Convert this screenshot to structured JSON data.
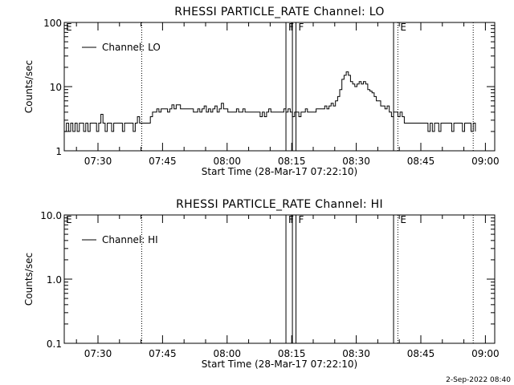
{
  "footer_date": "2-Sep-2022 08:40",
  "x_ticks": [
    "07:30",
    "07:45",
    "08:00",
    "08:15",
    "08:30",
    "08:45",
    "09:00"
  ],
  "chart_data": [
    {
      "type": "line",
      "title": "RHESSI PARTICLE_RATE Channel: LO",
      "xlabel": "Start Time (28-Mar-17 07:22:10)",
      "ylabel": "Counts/sec",
      "yscale": "log",
      "ylim": [
        1,
        100
      ],
      "y_tick_labels": [
        "1",
        "10",
        "100"
      ],
      "xlim": [
        "07:22:10",
        "09:02:10"
      ],
      "legend": "top-left",
      "series": [
        {
          "name": "Channel: LO",
          "points": [
            [
              "07:22:10",
              2
            ],
            [
              "07:22:40",
              2.7
            ],
            [
              "07:23:10",
              2
            ],
            [
              "07:23:40",
              2.7
            ],
            [
              "07:24:10",
              2
            ],
            [
              "07:24:40",
              2.7
            ],
            [
              "07:25:10",
              2
            ],
            [
              "07:25:40",
              2.7
            ],
            [
              "07:26:10",
              2.7
            ],
            [
              "07:26:40",
              2
            ],
            [
              "07:27:10",
              2.7
            ],
            [
              "07:27:40",
              2
            ],
            [
              "07:28:10",
              2.7
            ],
            [
              "07:28:40",
              2.7
            ],
            [
              "07:29:10",
              2.7
            ],
            [
              "07:29:40",
              2
            ],
            [
              "07:30:10",
              2.7
            ],
            [
              "07:30:40",
              3.7
            ],
            [
              "07:31:10",
              2.7
            ],
            [
              "07:31:40",
              2
            ],
            [
              "07:32:10",
              2.7
            ],
            [
              "07:32:40",
              2.7
            ],
            [
              "07:33:10",
              2
            ],
            [
              "07:33:40",
              2.7
            ],
            [
              "07:34:10",
              2.7
            ],
            [
              "07:34:40",
              2.7
            ],
            [
              "07:35:10",
              2.7
            ],
            [
              "07:35:40",
              2
            ],
            [
              "07:36:10",
              2.7
            ],
            [
              "07:36:40",
              2.7
            ],
            [
              "07:37:10",
              2.7
            ],
            [
              "07:37:40",
              2.7
            ],
            [
              "07:38:10",
              2
            ],
            [
              "07:38:40",
              2.7
            ],
            [
              "07:39:10",
              3.4
            ],
            [
              "07:39:40",
              2.7
            ],
            [
              "07:40:10",
              2.7
            ],
            [
              "07:40:40",
              2.7
            ],
            [
              "07:41:10",
              2.7
            ],
            [
              "07:41:40",
              2.7
            ],
            [
              "07:42:10",
              3.4
            ],
            [
              "07:42:40",
              4
            ],
            [
              "07:43:10",
              4
            ],
            [
              "07:43:40",
              4.5
            ],
            [
              "07:44:10",
              4
            ],
            [
              "07:44:40",
              4.5
            ],
            [
              "07:45:10",
              4.5
            ],
            [
              "07:45:40",
              4.5
            ],
            [
              "07:46:10",
              4
            ],
            [
              "07:46:40",
              4.5
            ],
            [
              "07:47:10",
              5.2
            ],
            [
              "07:47:40",
              4.5
            ],
            [
              "07:48:10",
              5.2
            ],
            [
              "07:48:40",
              5.2
            ],
            [
              "07:49:10",
              4.5
            ],
            [
              "07:49:40",
              4.5
            ],
            [
              "07:50:10",
              4.5
            ],
            [
              "07:50:40",
              4.5
            ],
            [
              "07:51:10",
              4.5
            ],
            [
              "07:51:40",
              4.5
            ],
            [
              "07:52:10",
              4
            ],
            [
              "07:52:40",
              4
            ],
            [
              "07:53:10",
              4.5
            ],
            [
              "07:53:40",
              4
            ],
            [
              "07:54:10",
              4.5
            ],
            [
              "07:54:40",
              5
            ],
            [
              "07:55:10",
              4
            ],
            [
              "07:55:40",
              4.5
            ],
            [
              "07:56:10",
              4
            ],
            [
              "07:56:40",
              4.5
            ],
            [
              "07:57:10",
              5
            ],
            [
              "07:57:40",
              4
            ],
            [
              "07:58:10",
              4.5
            ],
            [
              "07:58:40",
              5.5
            ],
            [
              "07:59:10",
              4.5
            ],
            [
              "07:59:40",
              4.5
            ],
            [
              "08:00:10",
              4
            ],
            [
              "08:00:40",
              4
            ],
            [
              "08:01:10",
              4
            ],
            [
              "08:01:40",
              4
            ],
            [
              "08:02:10",
              4.5
            ],
            [
              "08:02:40",
              4
            ],
            [
              "08:03:10",
              4
            ],
            [
              "08:03:40",
              4.5
            ],
            [
              "08:04:10",
              4
            ],
            [
              "08:04:40",
              4
            ],
            [
              "08:05:10",
              4
            ],
            [
              "08:05:40",
              4
            ],
            [
              "08:06:10",
              4
            ],
            [
              "08:06:40",
              4
            ],
            [
              "08:07:10",
              4
            ],
            [
              "08:07:40",
              3.4
            ],
            [
              "08:08:10",
              4
            ],
            [
              "08:08:40",
              3.4
            ],
            [
              "08:09:10",
              4
            ],
            [
              "08:09:40",
              4.5
            ],
            [
              "08:10:10",
              4
            ],
            [
              "08:10:40",
              4
            ],
            [
              "08:11:10",
              4
            ],
            [
              "08:11:40",
              4
            ],
            [
              "08:12:10",
              4
            ],
            [
              "08:12:40",
              4
            ],
            [
              "08:13:10",
              4.5
            ],
            [
              "08:13:40",
              4
            ],
            [
              "08:14:10",
              4.5
            ],
            [
              "08:14:40",
              4
            ],
            [
              "08:15:10",
              3.4
            ],
            [
              "08:15:40",
              4
            ],
            [
              "08:16:10",
              4
            ],
            [
              "08:16:40",
              3.4
            ],
            [
              "08:17:10",
              4
            ],
            [
              "08:17:40",
              4
            ],
            [
              "08:18:10",
              4.5
            ],
            [
              "08:18:40",
              4
            ],
            [
              "08:19:10",
              4
            ],
            [
              "08:19:40",
              4
            ],
            [
              "08:20:10",
              4
            ],
            [
              "08:20:40",
              4.5
            ],
            [
              "08:21:10",
              4.5
            ],
            [
              "08:21:40",
              4.5
            ],
            [
              "08:22:10",
              4.5
            ],
            [
              "08:22:40",
              5
            ],
            [
              "08:23:10",
              4.5
            ],
            [
              "08:23:40",
              5
            ],
            [
              "08:24:10",
              5.5
            ],
            [
              "08:24:40",
              5
            ],
            [
              "08:25:10",
              6
            ],
            [
              "08:25:40",
              7
            ],
            [
              "08:26:10",
              9
            ],
            [
              "08:26:40",
              13
            ],
            [
              "08:27:10",
              15
            ],
            [
              "08:27:40",
              17
            ],
            [
              "08:28:10",
              15
            ],
            [
              "08:28:40",
              12
            ],
            [
              "08:29:10",
              11
            ],
            [
              "08:29:40",
              10
            ],
            [
              "08:30:10",
              11
            ],
            [
              "08:30:40",
              12
            ],
            [
              "08:31:10",
              11
            ],
            [
              "08:31:40",
              12
            ],
            [
              "08:32:10",
              11
            ],
            [
              "08:32:40",
              9
            ],
            [
              "08:33:10",
              8.5
            ],
            [
              "08:33:40",
              8
            ],
            [
              "08:34:10",
              7
            ],
            [
              "08:34:40",
              6
            ],
            [
              "08:35:10",
              6
            ],
            [
              "08:35:40",
              5
            ],
            [
              "08:36:10",
              5
            ],
            [
              "08:36:40",
              4.5
            ],
            [
              "08:37:10",
              5
            ],
            [
              "08:37:40",
              4
            ],
            [
              "08:38:10",
              3.4
            ],
            [
              "08:38:40",
              4
            ],
            [
              "08:39:10",
              4
            ],
            [
              "08:39:40",
              3.4
            ],
            [
              "08:40:10",
              4
            ],
            [
              "08:40:40",
              3.4
            ],
            [
              "08:41:10",
              2.7
            ],
            [
              "08:41:40",
              2.7
            ],
            [
              "08:42:10",
              2.7
            ],
            [
              "08:42:40",
              2.7
            ],
            [
              "08:43:10",
              2.7
            ],
            [
              "08:43:40",
              2.7
            ],
            [
              "08:44:10",
              2.7
            ],
            [
              "08:44:40",
              2.7
            ],
            [
              "08:45:10",
              2.7
            ],
            [
              "08:45:40",
              2.7
            ],
            [
              "08:46:10",
              2.7
            ],
            [
              "08:46:40",
              2
            ],
            [
              "08:47:10",
              2.7
            ],
            [
              "08:47:40",
              2
            ],
            [
              "08:48:10",
              2.7
            ],
            [
              "08:48:40",
              2.7
            ],
            [
              "08:49:10",
              2
            ],
            [
              "08:49:40",
              2.7
            ],
            [
              "08:50:10",
              2.7
            ],
            [
              "08:50:40",
              2.7
            ],
            [
              "08:51:10",
              2.7
            ],
            [
              "08:51:40",
              2.7
            ],
            [
              "08:52:10",
              2
            ],
            [
              "08:52:40",
              2.7
            ],
            [
              "08:53:10",
              2.7
            ],
            [
              "08:53:40",
              2.7
            ],
            [
              "08:54:10",
              2.7
            ],
            [
              "08:54:40",
              2
            ],
            [
              "08:55:10",
              2.7
            ],
            [
              "08:55:40",
              2.7
            ],
            [
              "08:56:10",
              2.7
            ],
            [
              "08:56:40",
              2
            ],
            [
              "08:57:10",
              2.7
            ],
            [
              "08:57:40",
              2
            ]
          ]
        }
      ],
      "markers": [
        {
          "time": "07:40:10",
          "label": "",
          "style": "dotted"
        },
        {
          "time": "08:13:40",
          "label": "F",
          "style": "solid"
        },
        {
          "time": "08:15:10",
          "label": "",
          "style": "solid"
        },
        {
          "time": "08:16:00",
          "label": "F",
          "style": "solid"
        },
        {
          "time": "08:38:40",
          "label": "",
          "style": "solid"
        },
        {
          "time": "08:39:40",
          "label": "E",
          "style": "dotted"
        },
        {
          "time": "08:57:10",
          "label": "",
          "style": "dotted"
        }
      ],
      "corner_label": "E"
    },
    {
      "type": "line",
      "title": "RHESSI PARTICLE_RATE Channel: HI",
      "xlabel": "Start Time (28-Mar-17 07:22:10)",
      "ylabel": "Counts/sec",
      "yscale": "log",
      "ylim": [
        0.1,
        10
      ],
      "y_tick_labels": [
        "0.1",
        "1.0",
        "10.0"
      ],
      "xlim": [
        "07:22:10",
        "09:02:10"
      ],
      "legend": "top-left",
      "series": [
        {
          "name": "Channel: HI",
          "points": []
        }
      ],
      "markers": [
        {
          "time": "07:40:10",
          "label": "",
          "style": "dotted"
        },
        {
          "time": "08:13:40",
          "label": "F",
          "style": "solid"
        },
        {
          "time": "08:15:10",
          "label": "",
          "style": "solid"
        },
        {
          "time": "08:16:00",
          "label": "F",
          "style": "solid"
        },
        {
          "time": "08:38:40",
          "label": "",
          "style": "solid"
        },
        {
          "time": "08:39:40",
          "label": "E",
          "style": "dotted"
        },
        {
          "time": "08:57:10",
          "label": "",
          "style": "dotted"
        }
      ],
      "corner_label": "E"
    }
  ]
}
